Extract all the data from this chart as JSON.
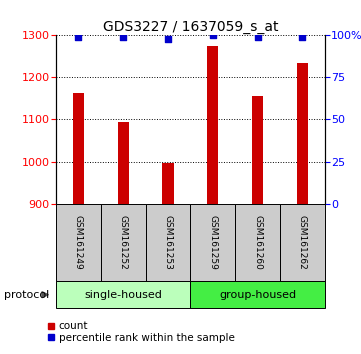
{
  "title": "GDS3227 / 1637059_s_at",
  "samples": [
    "GSM161249",
    "GSM161252",
    "GSM161253",
    "GSM161259",
    "GSM161260",
    "GSM161262"
  ],
  "bar_values": [
    1163,
    1095,
    997,
    1275,
    1155,
    1235
  ],
  "percentile_values": [
    99,
    99,
    98,
    100,
    99,
    99
  ],
  "bar_color": "#cc0000",
  "percentile_color": "#0000cc",
  "ylim_left": [
    900,
    1300
  ],
  "ylim_right": [
    0,
    100
  ],
  "yticks_left": [
    900,
    1000,
    1100,
    1200,
    1300
  ],
  "yticks_right": [
    0,
    25,
    50,
    75,
    100
  ],
  "groups": [
    {
      "label": "single-housed",
      "samples": [
        0,
        1,
        2
      ],
      "color": "#bbffbb"
    },
    {
      "label": "group-housed",
      "samples": [
        3,
        4,
        5
      ],
      "color": "#44ee44"
    }
  ],
  "protocol_label": "protocol",
  "legend_items": [
    {
      "label": "count",
      "color": "#cc0000"
    },
    {
      "label": "percentile rank within the sample",
      "color": "#0000cc"
    }
  ],
  "background_color": "#ffffff",
  "sample_box_color": "#cccccc",
  "title_fontsize": 10,
  "tick_fontsize": 8,
  "bar_width": 0.25
}
